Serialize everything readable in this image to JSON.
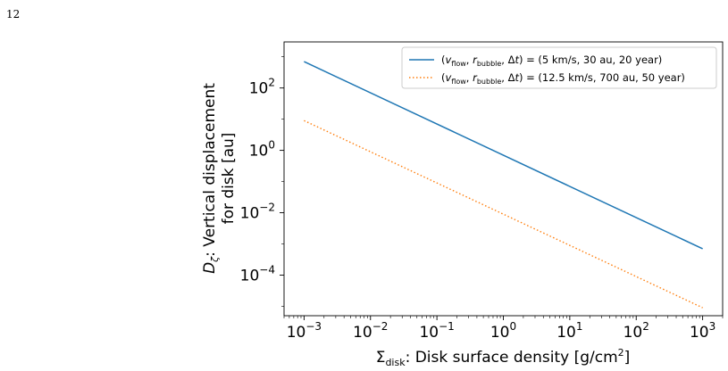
{
  "page": {
    "number": "12"
  },
  "chart_data": {
    "type": "line",
    "title": "",
    "xlabel": "Σdisk: Disk surface density [g/cm2]",
    "ylabel": "Dζ: Vertical displacement for disk [au]",
    "xscale": "log",
    "yscale": "log",
    "xlim": [
      0.0005,
      2000
    ],
    "ylim": [
      5e-06,
      3000
    ],
    "x_ticks": [
      {
        "value": 0.001,
        "mantissa": "10",
        "exp": "−3"
      },
      {
        "value": 0.01,
        "mantissa": "10",
        "exp": "−2"
      },
      {
        "value": 0.1,
        "mantissa": "10",
        "exp": "−1"
      },
      {
        "value": 1,
        "mantissa": "10",
        "exp": "0"
      },
      {
        "value": 10,
        "mantissa": "10",
        "exp": "1"
      },
      {
        "value": 100,
        "mantissa": "10",
        "exp": "2"
      },
      {
        "value": 1000,
        "mantissa": "10",
        "exp": "3"
      }
    ],
    "y_ticks": [
      {
        "value": 0.0001,
        "mantissa": "10",
        "exp": "−4"
      },
      {
        "value": 0.01,
        "mantissa": "10",
        "exp": "−2"
      },
      {
        "value": 1,
        "mantissa": "10",
        "exp": "0"
      },
      {
        "value": 100,
        "mantissa": "10",
        "exp": "2"
      }
    ],
    "grid": false,
    "legend_position": "top-right",
    "series": [
      {
        "name": "(vflow, rbubble, Δt) = (5 km/s, 30 au, 20 year)",
        "color": "#1f77b4",
        "style": "solid",
        "x": [
          0.001,
          1000
        ],
        "y": [
          700,
          0.0007
        ]
      },
      {
        "name": "(vflow, rbubble, Δt) = (12.5 km/s, 700 au, 50 year)",
        "color": "#ff7f0e",
        "style": "dotted",
        "x": [
          0.001,
          1000
        ],
        "y": [
          9,
          9e-06
        ]
      }
    ]
  }
}
